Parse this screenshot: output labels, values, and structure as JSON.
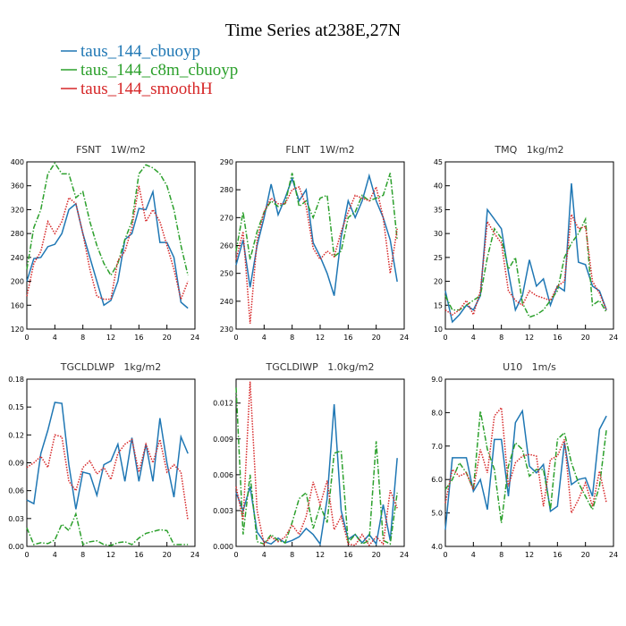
{
  "title": "Time Series at238E,27N",
  "legend": [
    {
      "name": "taus_144_cbuoyp",
      "color": "#1f77b4",
      "dash": "solid"
    },
    {
      "name": "taus_144_c8m_cbuoyp",
      "color": "#2ca02c",
      "dash": "dashdot"
    },
    {
      "name": "taus_144_smoothH",
      "color": "#d62728",
      "dash": "dotted"
    }
  ],
  "x": [
    0,
    1,
    2,
    3,
    4,
    5,
    6,
    7,
    8,
    9,
    10,
    11,
    12,
    13,
    14,
    15,
    16,
    17,
    18,
    19,
    20,
    21,
    22,
    23
  ],
  "chart_data": [
    {
      "type": "line",
      "title": "FSNT   1W/m2",
      "xlim": [
        0,
        24
      ],
      "xticks": [
        0,
        4,
        8,
        12,
        16,
        20,
        24
      ],
      "ylim": [
        120,
        400
      ],
      "yticks": [
        120,
        160,
        200,
        240,
        280,
        320,
        360,
        400
      ],
      "series": [
        {
          "values": [
            200,
            238,
            240,
            258,
            262,
            280,
            320,
            330,
            280,
            240,
            200,
            160,
            168,
            200,
            270,
            280,
            322,
            320,
            350,
            265,
            265,
            240,
            165,
            155
          ]
        },
        {
          "values": [
            220,
            290,
            320,
            380,
            398,
            380,
            380,
            340,
            350,
            300,
            260,
            230,
            210,
            230,
            270,
            300,
            380,
            395,
            390,
            380,
            360,
            320,
            260,
            210
          ]
        },
        {
          "values": [
            175,
            230,
            250,
            300,
            280,
            300,
            340,
            330,
            280,
            220,
            175,
            170,
            170,
            235,
            250,
            290,
            360,
            300,
            320,
            300,
            260,
            220,
            170,
            200
          ]
        }
      ]
    },
    {
      "type": "line",
      "title": "FLNT   1W/m2",
      "xlim": [
        0,
        24
      ],
      "xticks": [
        0,
        4,
        8,
        12,
        16,
        20,
        24
      ],
      "ylim": [
        230,
        290
      ],
      "yticks": [
        230,
        240,
        250,
        260,
        270,
        280,
        290
      ],
      "series": [
        {
          "values": [
            253,
            262,
            245,
            260,
            270,
            282,
            271,
            277,
            284,
            276,
            280,
            261,
            256,
            250,
            242,
            263,
            276,
            270,
            276,
            285,
            276,
            270,
            262,
            247
          ]
        },
        {
          "values": [
            258,
            272,
            255,
            265,
            272,
            276,
            274,
            275,
            286,
            274,
            276,
            270,
            277,
            278,
            256,
            258,
            270,
            272,
            278,
            276,
            277,
            278,
            286,
            262
          ]
        },
        {
          "values": [
            255,
            265,
            232,
            262,
            272,
            277,
            275,
            275,
            280,
            281,
            274,
            259,
            255,
            258,
            256,
            265,
            272,
            278,
            277,
            276,
            281,
            270,
            250,
            266
          ]
        }
      ]
    },
    {
      "type": "line",
      "title": "TMQ   1kg/m2",
      "xlim": [
        0,
        24
      ],
      "xticks": [
        0,
        4,
        8,
        12,
        16,
        20,
        24
      ],
      "ylim": [
        10,
        45
      ],
      "yticks": [
        10,
        15,
        20,
        25,
        30,
        35,
        40,
        45
      ],
      "series": [
        {
          "values": [
            18,
            11.5,
            13,
            15,
            14,
            17,
            35,
            33,
            31,
            22,
            14,
            17,
            24.5,
            19,
            20.5,
            15,
            19,
            18,
            40.5,
            24,
            23.5,
            19,
            18,
            14
          ]
        },
        {
          "values": [
            17,
            14,
            14,
            15,
            16,
            17,
            25,
            31,
            29,
            22.5,
            25,
            15.5,
            12.5,
            13,
            14,
            16,
            18,
            25,
            28,
            30,
            33,
            15,
            16,
            13.5
          ]
        },
        {
          "values": [
            14,
            13,
            14,
            16,
            13,
            18,
            32.5,
            30,
            28,
            18,
            16,
            15,
            18,
            17,
            16.5,
            16,
            19,
            20,
            34,
            31,
            31.5,
            20,
            17.5,
            14
          ]
        }
      ]
    },
    {
      "type": "line",
      "title": "TGCLDLWP   1kg/m2",
      "xlim": [
        0,
        24
      ],
      "xticks": [
        0,
        4,
        8,
        12,
        16,
        20,
        24
      ],
      "ylim": [
        0,
        0.18
      ],
      "yticks": [
        {
          "value": 0,
          "label": "0.00"
        },
        {
          "value": 0.03,
          "label": "0.03"
        },
        {
          "value": 0.06,
          "label": "0.06"
        },
        {
          "value": 0.09,
          "label": "0.09"
        },
        {
          "value": 0.12,
          "label": "0.12"
        },
        {
          "value": 0.15,
          "label": "0.15"
        },
        {
          "value": 0.18,
          "label": "0.18"
        }
      ],
      "series": [
        {
          "values": [
            0.05,
            0.046,
            0.1,
            0.125,
            0.155,
            0.154,
            0.088,
            0.04,
            0.08,
            0.078,
            0.055,
            0.088,
            0.092,
            0.11,
            0.07,
            0.117,
            0.07,
            0.11,
            0.07,
            0.138,
            0.09,
            0.053,
            0.118,
            0.1
          ]
        },
        {
          "values": [
            0.02,
            0.002,
            0.004,
            0.003,
            0.007,
            0.024,
            0.017,
            0.035,
            0.002,
            0.005,
            0.006,
            0.002,
            0.001,
            0.004,
            0.005,
            0.002,
            0.009,
            0.014,
            0.016,
            0.018,
            0.017,
            0.002,
            0.002,
            0.002
          ]
        },
        {
          "values": [
            0.085,
            0.09,
            0.097,
            0.085,
            0.12,
            0.118,
            0.07,
            0.06,
            0.085,
            0.092,
            0.078,
            0.085,
            0.072,
            0.1,
            0.11,
            0.115,
            0.08,
            0.11,
            0.09,
            0.115,
            0.08,
            0.088,
            0.08,
            0.028
          ]
        }
      ]
    },
    {
      "type": "line",
      "title": "TGCLDIWP   1.0kg/m2",
      "xlim": [
        0,
        24
      ],
      "xticks": [
        0,
        4,
        8,
        12,
        16,
        20,
        24
      ],
      "ylim": [
        0,
        0.014
      ],
      "yticks": [
        {
          "value": 0,
          "label": "0.000"
        },
        {
          "value": 0.003,
          "label": "0.003"
        },
        {
          "value": 0.006,
          "label": "0.006"
        },
        {
          "value": 0.009,
          "label": "0.009"
        },
        {
          "value": 0.012,
          "label": "0.012"
        }
      ],
      "series": [
        {
          "values": [
            0.0045,
            0.003,
            0.005,
            0.0012,
            0.0004,
            0.0002,
            0.0007,
            0.0003,
            0.0005,
            0.0008,
            0.0015,
            0.001,
            0.0002,
            0.004,
            0.0119,
            0.003,
            0.0006,
            0.001,
            0.0003,
            0.001,
            0.0002,
            0.0035,
            0.0005,
            0.0074
          ]
        },
        {
          "values": [
            0.0133,
            0.001,
            0.006,
            0.0004,
            0.0002,
            0.001,
            0.0005,
            0.0003,
            0.002,
            0.004,
            0.0045,
            0.0015,
            0.0034,
            0.002,
            0.0078,
            0.008,
            0.0003,
            0.001,
            0.0002,
            0.0005,
            0.0088,
            0.0005,
            0.0002,
            0.0045
          ]
        },
        {
          "values": [
            0.005,
            0.0022,
            0.0138,
            0.003,
            0.0002,
            0.0008,
            0.0004,
            0.0008,
            0.0018,
            0.001,
            0.0025,
            0.0054,
            0.0035,
            0.0055,
            0.0014,
            0.0025,
            0.0002,
            0.0001,
            0.001,
            0.0001,
            0.0008,
            0.0002,
            0.0047,
            0.0032
          ]
        }
      ]
    },
    {
      "type": "line",
      "title": "U10   1m/s",
      "xlim": [
        0,
        24
      ],
      "xticks": [
        0,
        4,
        8,
        12,
        16,
        20,
        24
      ],
      "ylim": [
        4,
        9
      ],
      "yticks": [
        {
          "value": 4,
          "label": "4.0"
        },
        {
          "value": 5,
          "label": "5.0"
        },
        {
          "value": 6,
          "label": "6.0"
        },
        {
          "value": 7,
          "label": "7.0"
        },
        {
          "value": 8,
          "label": "8.0"
        },
        {
          "value": 9,
          "label": "9.0"
        }
      ],
      "series": [
        {
          "values": [
            4.5,
            6.65,
            6.65,
            6.65,
            5.65,
            6,
            5.1,
            7.2,
            7.2,
            5.5,
            7.7,
            8.05,
            6.4,
            6.2,
            6.45,
            5.05,
            5.2,
            7.1,
            5.85,
            6,
            6.05,
            5.5,
            7.5,
            7.9
          ]
        },
        {
          "values": [
            5.7,
            6.0,
            6.5,
            6.2,
            5.7,
            8.05,
            6.9,
            6.3,
            4.7,
            6.4,
            7.1,
            6.9,
            6.1,
            6.3,
            6.3,
            5.1,
            7.2,
            7.4,
            6.5,
            5.9,
            5.5,
            5.1,
            5.8,
            7.5
          ]
        },
        {
          "values": [
            5.3,
            6.3,
            6.1,
            6.2,
            5.7,
            6.9,
            6.2,
            7.9,
            8.15,
            5.8,
            6.5,
            6.7,
            6.75,
            6.7,
            5.2,
            6.6,
            6.7,
            7.2,
            5.0,
            5.4,
            5.9,
            5.2,
            6.25,
            5.3
          ]
        }
      ]
    }
  ]
}
